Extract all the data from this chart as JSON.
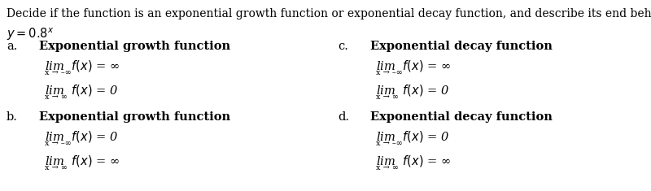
{
  "title": "Decide if the function is an exponential growth function or exponential decay function, and describe its end behavior using limits.",
  "background_color": "#ffffff",
  "text_color": "#000000",
  "options": [
    {
      "label": "a.",
      "header": "Exponential growth function",
      "line1_main": "lim  $f(x)$ = ∞",
      "line1_sub": "x → –∞",
      "line2_main": "lim  $f(x)$ = 0",
      "line2_sub": "x → ∞",
      "col": 0,
      "row": 0
    },
    {
      "label": "b.",
      "header": "Exponential growth function",
      "line1_main": "lim  $f(x)$ = 0",
      "line1_sub": "x → –∞",
      "line2_main": "lim  $f(x)$ = ∞",
      "line2_sub": "x → ∞",
      "col": 0,
      "row": 1
    },
    {
      "label": "c.",
      "header": "Exponential decay function",
      "line1_main": "lim  $f(x)$ = ∞",
      "line1_sub": "x → –∞",
      "line2_main": "lim  $f(x)$ = 0",
      "line2_sub": "x → ∞",
      "col": 1,
      "row": 0
    },
    {
      "label": "d.",
      "header": "Exponential decay function",
      "line1_main": "lim  $f(x)$ = 0",
      "line1_sub": "x → –∞",
      "line2_main": "lim  $f(x)$ = ∞",
      "line2_sub": "x → ∞",
      "col": 1,
      "row": 1
    }
  ],
  "title_fontsize": 10.0,
  "header_fontsize": 10.5,
  "main_fontsize": 10.5,
  "sub_fontsize": 7.0,
  "label_fontsize": 10.5,
  "func_fontsize": 10.5
}
